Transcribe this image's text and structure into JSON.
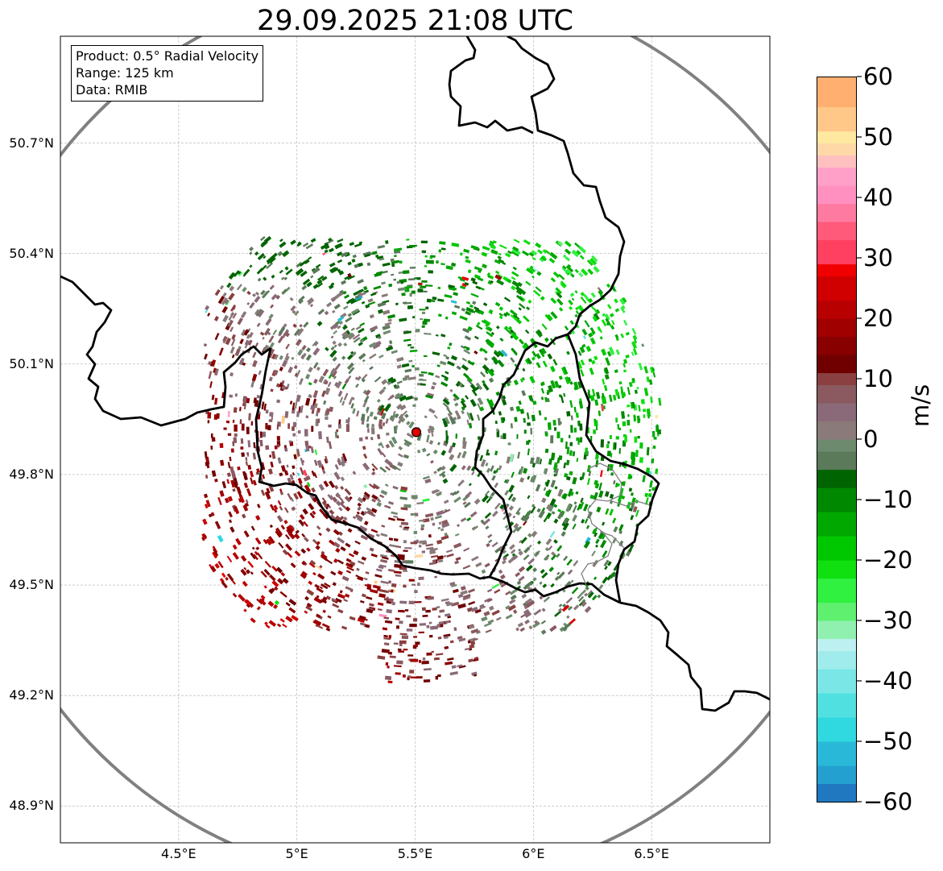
{
  "title": "29.09.2025 21:08 UTC",
  "info": {
    "product": "Product: 0.5° Radial Velocity",
    "range": "Range: 125 km",
    "data": "Data: RMIB"
  },
  "map": {
    "lon_range": [
      4.0,
      7.0
    ],
    "lat_range": [
      48.8,
      50.99
    ],
    "radar_site": {
      "lon": 5.505,
      "lat": 49.915
    },
    "range_circle_km": 125,
    "y_ticks": [
      "50.7°N",
      "50.4°N",
      "50.1°N",
      "49.8°N",
      "49.5°N",
      "49.2°N",
      "48.9°N"
    ],
    "y_tick_values": [
      50.7,
      50.4,
      50.1,
      49.8,
      49.5,
      49.2,
      48.9
    ],
    "x_ticks": [
      "4.5°E",
      "5°E",
      "5.5°E",
      "6°E",
      "6.5°E"
    ],
    "x_tick_values": [
      4.5,
      5.0,
      5.5,
      6.0,
      6.5
    ],
    "colors": {
      "border": "#000000",
      "circle": "#808080",
      "grid": "#b0b0b0",
      "radar_site": "#e00000"
    }
  },
  "colorbar": {
    "label": "m/s",
    "min": -60,
    "max": 60,
    "ticks": [
      "60",
      "50",
      "40",
      "30",
      "20",
      "10",
      "0",
      "−10",
      "−20",
      "−30",
      "−40",
      "−50",
      "−60"
    ],
    "tick_values": [
      60,
      50,
      40,
      30,
      20,
      10,
      0,
      -10,
      -20,
      -30,
      -40,
      -50,
      -60
    ],
    "stops": [
      {
        "v": -60,
        "c": "#1f78c0"
      },
      {
        "v": -57,
        "c": "#24a0d0"
      },
      {
        "v": -54,
        "c": "#2ab8d8"
      },
      {
        "v": -50,
        "c": "#30d8e0"
      },
      {
        "v": -46,
        "c": "#50e0e0"
      },
      {
        "v": -42,
        "c": "#7ae6e6"
      },
      {
        "v": -38,
        "c": "#a0ecec"
      },
      {
        "v": -35,
        "c": "#bdf0f0"
      },
      {
        "v": -33,
        "c": "#90f0b0"
      },
      {
        "v": -30,
        "c": "#60f070"
      },
      {
        "v": -27,
        "c": "#30f040"
      },
      {
        "v": -23,
        "c": "#10e010"
      },
      {
        "v": -20,
        "c": "#00c800"
      },
      {
        "v": -16,
        "c": "#00a800"
      },
      {
        "v": -12,
        "c": "#008800"
      },
      {
        "v": -8,
        "c": "#006400"
      },
      {
        "v": -5,
        "c": "#5a7a5a"
      },
      {
        "v": -2,
        "c": "#6e8a6e"
      },
      {
        "v": 0,
        "c": "#8a7a7a"
      },
      {
        "v": 3,
        "c": "#8a6a78"
      },
      {
        "v": 6,
        "c": "#8a5a60"
      },
      {
        "v": 9,
        "c": "#8a4040"
      },
      {
        "v": 11,
        "c": "#700000"
      },
      {
        "v": 14,
        "c": "#880000"
      },
      {
        "v": 17,
        "c": "#a00000"
      },
      {
        "v": 20,
        "c": "#b80000"
      },
      {
        "v": 23,
        "c": "#d00000"
      },
      {
        "v": 27,
        "c": "#f00000"
      },
      {
        "v": 29,
        "c": "#ff4060"
      },
      {
        "v": 33,
        "c": "#ff5a7a"
      },
      {
        "v": 36,
        "c": "#ff7aa0"
      },
      {
        "v": 39,
        "c": "#ff90c0"
      },
      {
        "v": 42,
        "c": "#ffa0c8"
      },
      {
        "v": 45,
        "c": "#ffc0c0"
      },
      {
        "v": 47,
        "c": "#ffd8a8"
      },
      {
        "v": 49,
        "c": "#ffe8a0"
      },
      {
        "v": 51,
        "c": "#ffc888"
      },
      {
        "v": 55,
        "c": "#ffb070"
      },
      {
        "v": 60,
        "c": "#ff9a50"
      }
    ]
  }
}
